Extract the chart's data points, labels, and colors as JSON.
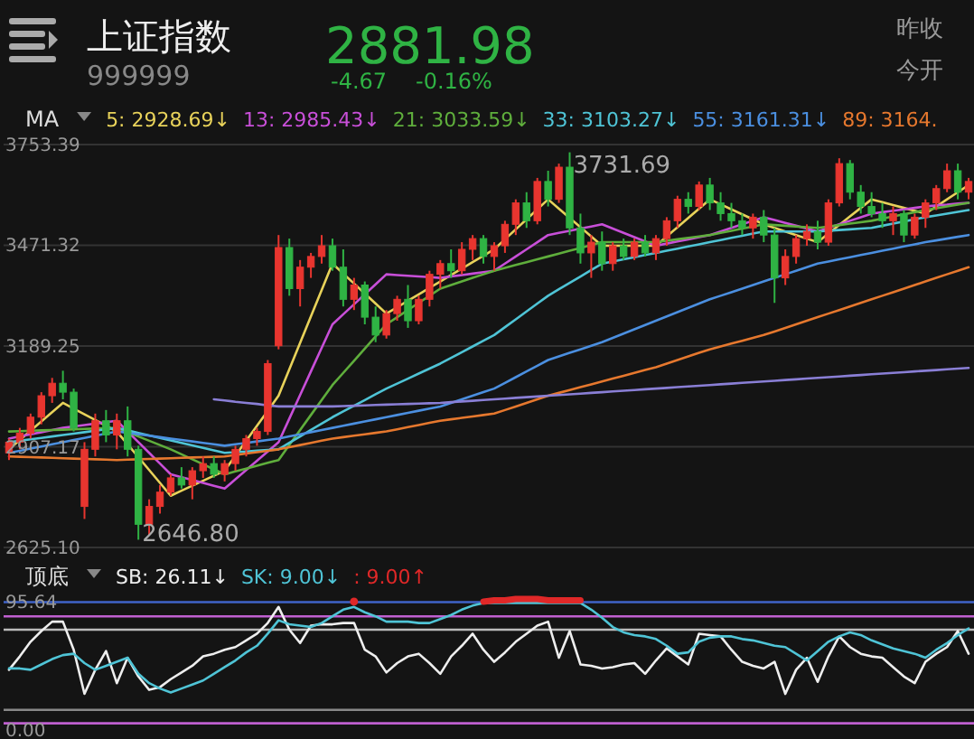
{
  "chart_data": [
    {
      "type": "candlestick",
      "title": "上证指数",
      "subtitle": "999999",
      "legend_title": "MA",
      "legend": "top",
      "grid": "y",
      "annotations": [
        "2881.98",
        "-4.67",
        "-0.16%",
        "昨收",
        "今开",
        "3731.69",
        "2646.80"
      ],
      "categories": [
        null,
        null,
        null,
        null,
        null,
        null,
        null,
        null,
        null,
        null,
        null,
        null,
        null,
        null,
        null,
        null,
        null,
        null,
        null,
        null,
        null,
        null,
        null,
        null,
        null,
        null,
        null,
        null,
        null,
        null,
        null,
        null,
        null,
        null,
        null,
        null,
        null,
        null,
        null,
        null,
        null,
        null,
        null,
        null,
        null,
        null,
        null,
        null,
        null,
        null,
        null,
        null,
        null,
        null,
        null,
        null,
        null,
        null,
        null,
        null,
        null,
        null,
        null,
        null,
        null,
        null,
        null,
        null,
        null,
        null,
        null,
        null,
        null,
        null,
        null,
        null,
        null,
        null,
        null,
        null,
        null,
        null,
        null,
        null,
        null,
        null,
        null,
        null,
        null,
        null
      ],
      "ohlc": [
        [
          2890,
          2930,
          2870,
          2920
        ],
        [
          2920,
          2960,
          2900,
          2945
        ],
        [
          2945,
          3000,
          2930,
          2990
        ],
        [
          2990,
          3060,
          2970,
          3050
        ],
        [
          3050,
          3100,
          3030,
          3085
        ],
        [
          3085,
          3120,
          3040,
          3060
        ],
        [
          3060,
          3070,
          2950,
          2960
        ],
        [
          2740,
          2920,
          2705,
          2900
        ],
        [
          2900,
          3000,
          2880,
          2980
        ],
        [
          2980,
          3010,
          2920,
          2940
        ],
        [
          2940,
          3000,
          2900,
          2980
        ],
        [
          2980,
          3020,
          2880,
          2900
        ],
        [
          2900,
          2910,
          2646.8,
          2690
        ],
        [
          2690,
          2760,
          2660,
          2740
        ],
        [
          2740,
          2800,
          2720,
          2780
        ],
        [
          2780,
          2830,
          2770,
          2820
        ],
        [
          2820,
          2850,
          2790,
          2800
        ],
        [
          2800,
          2850,
          2760,
          2840
        ],
        [
          2840,
          2880,
          2820,
          2860
        ],
        [
          2860,
          2880,
          2820,
          2830
        ],
        [
          2830,
          2870,
          2810,
          2860
        ],
        [
          2860,
          2910,
          2840,
          2900
        ],
        [
          2900,
          2940,
          2880,
          2930
        ],
        [
          2930,
          2960,
          2910,
          2950
        ],
        [
          2950,
          3150,
          2940,
          3140
        ],
        [
          3190,
          3500,
          3180,
          3465
        ],
        [
          3465,
          3490,
          3330,
          3350
        ],
        [
          3350,
          3430,
          3300,
          3410
        ],
        [
          3410,
          3450,
          3380,
          3440
        ],
        [
          3440,
          3500,
          3420,
          3470
        ],
        [
          3470,
          3490,
          3400,
          3410
        ],
        [
          3410,
          3460,
          3300,
          3320
        ],
        [
          3320,
          3380,
          3290,
          3360
        ],
        [
          3360,
          3370,
          3250,
          3270
        ],
        [
          3270,
          3300,
          3200,
          3220
        ],
        [
          3220,
          3290,
          3210,
          3280
        ],
        [
          3280,
          3330,
          3260,
          3320
        ],
        [
          3320,
          3360,
          3240,
          3260
        ],
        [
          3260,
          3330,
          3250,
          3320
        ],
        [
          3320,
          3400,
          3300,
          3390
        ],
        [
          3390,
          3430,
          3350,
          3420
        ],
        [
          3420,
          3460,
          3380,
          3400
        ],
        [
          3400,
          3480,
          3390,
          3460
        ],
        [
          3460,
          3500,
          3430,
          3490
        ],
        [
          3490,
          3500,
          3420,
          3440
        ],
        [
          3440,
          3480,
          3400,
          3470
        ],
        [
          3470,
          3540,
          3450,
          3530
        ],
        [
          3530,
          3600,
          3500,
          3590
        ],
        [
          3590,
          3620,
          3520,
          3540
        ],
        [
          3540,
          3660,
          3530,
          3650
        ],
        [
          3650,
          3680,
          3580,
          3600
        ],
        [
          3600,
          3700,
          3590,
          3690
        ],
        [
          3690,
          3731.69,
          3500,
          3520
        ],
        [
          3520,
          3560,
          3420,
          3450
        ],
        [
          3450,
          3500,
          3380,
          3480
        ],
        [
          3480,
          3510,
          3400,
          3420
        ],
        [
          3420,
          3480,
          3400,
          3470
        ],
        [
          3470,
          3490,
          3430,
          3440
        ],
        [
          3440,
          3490,
          3430,
          3480
        ],
        [
          3480,
          3500,
          3440,
          3450
        ],
        [
          3450,
          3500,
          3430,
          3490
        ],
        [
          3490,
          3550,
          3470,
          3540
        ],
        [
          3540,
          3610,
          3520,
          3600
        ],
        [
          3600,
          3620,
          3560,
          3580
        ],
        [
          3580,
          3650,
          3570,
          3640
        ],
        [
          3640,
          3660,
          3570,
          3590
        ],
        [
          3590,
          3620,
          3540,
          3560
        ],
        [
          3560,
          3590,
          3520,
          3540
        ],
        [
          3540,
          3560,
          3500,
          3520
        ],
        [
          3520,
          3560,
          3490,
          3550
        ],
        [
          3550,
          3570,
          3480,
          3500
        ],
        [
          3500,
          3520,
          3310,
          3380
        ],
        [
          3380,
          3460,
          3360,
          3440
        ],
        [
          3440,
          3500,
          3420,
          3490
        ],
        [
          3490,
          3530,
          3470,
          3510
        ],
        [
          3510,
          3540,
          3460,
          3480
        ],
        [
          3480,
          3600,
          3470,
          3590
        ],
        [
          3590,
          3715,
          3580,
          3700
        ],
        [
          3700,
          3710,
          3600,
          3620
        ],
        [
          3620,
          3640,
          3560,
          3580
        ],
        [
          3580,
          3620,
          3550,
          3560
        ],
        [
          3560,
          3590,
          3520,
          3540
        ],
        [
          3540,
          3580,
          3500,
          3560
        ],
        [
          3560,
          3570,
          3480,
          3500
        ],
        [
          3500,
          3560,
          3490,
          3550
        ],
        [
          3550,
          3600,
          3520,
          3590
        ],
        [
          3590,
          3640,
          3570,
          3630
        ],
        [
          3630,
          3700,
          3620,
          3680
        ],
        [
          3680,
          3700,
          3600,
          3620
        ],
        [
          3620,
          3660,
          3600,
          3650
        ]
      ],
      "series": [
        {
          "name": "5: 2928.69↓",
          "type": "line",
          "color": "#e8d25a",
          "values": [
            2900,
            2926,
            2952,
            2978,
            3004,
            3030,
            3014,
            2998,
            2982,
            2966,
            2950,
            2914,
            2878,
            2842,
            2806,
            2770,
            2784,
            2798,
            2812,
            2826,
            2840,
            2882,
            2924,
            2966,
            3008,
            3050,
            3124,
            3198,
            3272,
            3346,
            3420,
            3392,
            3364,
            3336,
            3308,
            3280,
            3298,
            3316,
            3334,
            3352,
            3370,
            3388,
            3406,
            3424,
            3442,
            3460,
            3488,
            3516,
            3544,
            3572,
            3600,
            3574,
            3548,
            3522,
            3496,
            3470,
            3470,
            3470,
            3470,
            3470,
            3470,
            3496,
            3522,
            3548,
            3574,
            3600,
            3586,
            3572,
            3558,
            3544,
            3530,
            3520,
            3510,
            3500,
            3490,
            3480,
            3504,
            3528,
            3552,
            3576,
            3600,
            3592,
            3584,
            3576,
            3568,
            3560,
            3580,
            3600,
            3620,
            3640
          ]
        },
        {
          "name": "13: 2985.43↓",
          "type": "line",
          "color": "#c84fd8",
          "values": [
            2930,
            2936,
            2942,
            2948,
            2954,
            2960,
            2964,
            2968,
            2972,
            2976,
            2980,
            2950,
            2920,
            2890,
            2860,
            2830,
            2822,
            2814,
            2806,
            2798,
            2790,
            2816,
            2842,
            2868,
            2894,
            2920,
            2986,
            3052,
            3118,
            3184,
            3250,
            3278,
            3306,
            3334,
            3362,
            3390,
            3388,
            3386,
            3384,
            3382,
            3380,
            3384,
            3388,
            3392,
            3396,
            3400,
            3420,
            3440,
            3460,
            3480,
            3500,
            3506,
            3512,
            3518,
            3524,
            3530,
            3518,
            3506,
            3494,
            3482,
            3470,
            3476,
            3482,
            3488,
            3494,
            3500,
            3510,
            3520,
            3530,
            3540,
            3550,
            3542,
            3534,
            3526,
            3518,
            3510,
            3520,
            3530,
            3540,
            3550,
            3560,
            3564,
            3568,
            3572,
            3576,
            3580,
            3583,
            3585,
            3588,
            3590
          ]
        },
        {
          "name": "21: 3033.59↓",
          "type": "line",
          "color": "#5fae3c",
          "values": [
            2950,
            2951,
            2952,
            2953,
            2954,
            2955,
            2956,
            2957,
            2958,
            2959,
            2960,
            2948,
            2936,
            2924,
            2912,
            2900,
            2886,
            2872,
            2858,
            2844,
            2830,
            2838,
            2846,
            2854,
            2862,
            2870,
            2912,
            2954,
            2996,
            3038,
            3080,
            3114,
            3148,
            3182,
            3216,
            3250,
            3270,
            3290,
            3310,
            3330,
            3350,
            3360,
            3370,
            3380,
            3390,
            3400,
            3408,
            3416,
            3424,
            3432,
            3440,
            3448,
            3456,
            3464,
            3472,
            3480,
            3480,
            3480,
            3480,
            3480,
            3480,
            3484,
            3488,
            3492,
            3496,
            3500,
            3506,
            3512,
            3518,
            3524,
            3530,
            3528,
            3526,
            3524,
            3522,
            3520,
            3524,
            3528,
            3532,
            3536,
            3540,
            3546,
            3552,
            3558,
            3564,
            3570,
            3575,
            3580,
            3585,
            3590
          ]
        },
        {
          "name": "33: 3103.27↓",
          "type": "line",
          "color": "#4fc4d6",
          "values": [
            2920,
            2924,
            2928,
            2932,
            2936,
            2940,
            2944,
            2948,
            2952,
            2956,
            2960,
            2953,
            2946,
            2939,
            2932,
            2925,
            2918,
            2911,
            2904,
            2897,
            2890,
            2892,
            2894,
            2896,
            2898,
            2900,
            2918,
            2936,
            2954,
            2972,
            2990,
            3006,
            3022,
            3038,
            3054,
            3070,
            3084,
            3098,
            3112,
            3126,
            3140,
            3156,
            3172,
            3188,
            3204,
            3220,
            3242,
            3264,
            3286,
            3308,
            3330,
            3348,
            3366,
            3384,
            3402,
            3420,
            3426,
            3432,
            3438,
            3444,
            3450,
            3456,
            3462,
            3468,
            3474,
            3480,
            3486,
            3492,
            3498,
            3504,
            3510,
            3510,
            3510,
            3510,
            3510,
            3510,
            3512,
            3514,
            3516,
            3518,
            3520,
            3526,
            3532,
            3538,
            3544,
            3550,
            3555,
            3560,
            3565,
            3570
          ]
        },
        {
          "name": "55: 3161.31↓",
          "type": "line",
          "color": "#4b8fe0",
          "values": [
            2890,
            2896,
            2902,
            2908,
            2914,
            2920,
            2926,
            2932,
            2938,
            2944,
            2950,
            2946,
            2942,
            2938,
            2934,
            2930,
            2926,
            2922,
            2918,
            2914,
            2910,
            2914,
            2918,
            2922,
            2926,
            2930,
            2936,
            2942,
            2948,
            2954,
            2960,
            2966,
            2972,
            2978,
            2984,
            2990,
            2996,
            3002,
            3008,
            3014,
            3020,
            3030,
            3040,
            3050,
            3060,
            3070,
            3086,
            3102,
            3118,
            3134,
            3150,
            3160,
            3170,
            3180,
            3190,
            3200,
            3212,
            3224,
            3236,
            3248,
            3260,
            3272,
            3284,
            3296,
            3308,
            3320,
            3330,
            3340,
            3350,
            3360,
            3370,
            3380,
            3390,
            3400,
            3410,
            3420,
            3426,
            3432,
            3438,
            3444,
            3450,
            3456,
            3462,
            3468,
            3474,
            3480,
            3485,
            3490,
            3495,
            3500
          ]
        },
        {
          "name": "89: 3164.",
          "type": "line",
          "color": "#e6782e",
          "values": [
            2880,
            2879,
            2878,
            2877,
            2876,
            2875,
            2874,
            2873,
            2872,
            2871,
            2870,
            2871,
            2872,
            2873,
            2874,
            2875,
            2876,
            2877,
            2878,
            2879,
            2880,
            2884,
            2888,
            2892,
            2896,
            2900,
            2906,
            2912,
            2918,
            2924,
            2930,
            2934,
            2938,
            2942,
            2946,
            2950,
            2956,
            2962,
            2968,
            2974,
            2980,
            2984,
            2988,
            2992,
            2996,
            3000,
            3010,
            3020,
            3030,
            3040,
            3050,
            3058,
            3066,
            3074,
            3082,
            3090,
            3098,
            3106,
            3114,
            3122,
            3130,
            3140,
            3150,
            3160,
            3170,
            3180,
            3188,
            3196,
            3204,
            3212,
            3220,
            3230,
            3240,
            3250,
            3260,
            3270,
            3280,
            3290,
            3300,
            3310,
            3320,
            3330,
            3340,
            3350,
            3360,
            3370,
            3380,
            3390,
            3400,
            3410
          ]
        },
        {
          "type": "line",
          "color": "#8a7fd6",
          "values": [
            null,
            null,
            null,
            null,
            null,
            null,
            null,
            null,
            null,
            null,
            null,
            null,
            null,
            null,
            null,
            null,
            null,
            null,
            null,
            3040,
            3037,
            3033,
            3030,
            3027,
            3023,
            3020,
            3020,
            3020,
            3020,
            3020,
            3020,
            3021,
            3022,
            3023,
            3024,
            3025,
            3026,
            3027,
            3028,
            3029,
            3030,
            3032,
            3034,
            3036,
            3038,
            3040,
            3042,
            3044,
            3046,
            3048,
            3050,
            3052,
            3054,
            3056,
            3058,
            3060,
            3062,
            3064,
            3066,
            3068,
            3070,
            3072,
            3074,
            3076,
            3078,
            3080,
            3082,
            3084,
            3086,
            3088,
            3090,
            3092,
            3094,
            3096,
            3098,
            3100,
            3102,
            3104,
            3106,
            3108,
            3110,
            3112,
            3114,
            3116,
            3118,
            3120,
            3122,
            3124,
            3126,
            3128
          ]
        }
      ],
      "ylim": [
        2625.1,
        3753.39
      ],
      "yticks": [
        {
          "value": 2625.1,
          "label": "2625.10"
        },
        2907.17,
        3189.25,
        3471.32,
        3753.39
      ]
    },
    {
      "type": "line",
      "legend_title": "顶底",
      "legend": "top",
      "tick_labels": "y",
      "ylim": [
        0,
        100
      ],
      "yticks": [
        {
          "value": 0,
          "label": "0.00"
        },
        95.64
      ],
      "categories": [
        null,
        null,
        null,
        null,
        null,
        null,
        null,
        null,
        null,
        null,
        null,
        null,
        null,
        null,
        null,
        null,
        null,
        null,
        null,
        null,
        null,
        null,
        null,
        null,
        null,
        null,
        null,
        null,
        null,
        null,
        null,
        null,
        null,
        null,
        null,
        null,
        null,
        null,
        null,
        null,
        null,
        null,
        null,
        null,
        null,
        null,
        null,
        null,
        null,
        null,
        null,
        null,
        null,
        null,
        null,
        null,
        null,
        null,
        null,
        null,
        null,
        null,
        null,
        null,
        null,
        null,
        null,
        null,
        null,
        null,
        null,
        null,
        null,
        null,
        null,
        null,
        null,
        null,
        null,
        null,
        null,
        null,
        null,
        null,
        null,
        null,
        null,
        null,
        null,
        null
      ],
      "ref_lines": [
        {
          "axis": "y",
          "value": 95.64,
          "color": "#3f63c8"
        },
        {
          "axis": "y",
          "value": 85,
          "color": "#c060d0"
        },
        {
          "axis": "y",
          "value": 75,
          "color": "#bbbbbb"
        },
        {
          "axis": "y",
          "value": 15,
          "color": "#888888"
        },
        {
          "axis": "y",
          "value": 5,
          "color": "#c060d0"
        }
      ],
      "series": [
        {
          "name": "SB: 26.11↓",
          "color": "#eeeeee",
          "values": [
            45,
            55,
            66,
            74,
            81,
            81,
            60,
            27,
            45,
            59,
            35,
            54,
            40,
            30,
            32,
            38,
            43,
            48,
            55,
            57,
            60,
            62,
            67,
            72,
            80,
            92,
            75,
            65,
            78,
            79,
            79,
            80,
            80,
            60,
            55,
            43,
            50,
            55,
            57,
            50,
            42,
            55,
            63,
            72,
            60,
            51,
            58,
            66,
            72,
            78,
            81,
            54,
            74,
            49,
            48,
            46,
            47,
            49,
            50,
            42,
            52,
            61,
            55,
            49,
            72,
            71,
            70,
            60,
            51,
            48,
            46,
            51,
            27,
            45,
            54,
            36,
            55,
            70,
            62,
            57,
            55,
            54,
            47,
            40,
            35,
            51,
            57,
            62,
            74,
            57
          ]
        },
        {
          "name": "SK: 9.00↓",
          "color": "#4fc4d6",
          "values": [
            46,
            46,
            45,
            49,
            53,
            56,
            57,
            50,
            45,
            48,
            51,
            54,
            42,
            35,
            31,
            28,
            31,
            34,
            37,
            42,
            47,
            52,
            58,
            63,
            72,
            82,
            79,
            78,
            77,
            80,
            85,
            90,
            92,
            88,
            85,
            81,
            81,
            81,
            80,
            80,
            83,
            86,
            90,
            93,
            95,
            95,
            95,
            95,
            95,
            95,
            95,
            95,
            95,
            95,
            90,
            84,
            77,
            73,
            71,
            70,
            68,
            63,
            57,
            58,
            66,
            69,
            70,
            70,
            68,
            67,
            65,
            63,
            62,
            57,
            52,
            59,
            66,
            70,
            73,
            71,
            67,
            64,
            61,
            59,
            57,
            54,
            60,
            65,
            71,
            76
          ]
        },
        {
          "name": ": 9.00↑",
          "color": "#e02828",
          "values": [
            null,
            null,
            null,
            null,
            null,
            null,
            null,
            null,
            null,
            null,
            null,
            null,
            null,
            null,
            null,
            null,
            null,
            null,
            null,
            null,
            null,
            null,
            null,
            null,
            null,
            null,
            null,
            null,
            null,
            null,
            null,
            null,
            96,
            null,
            null,
            null,
            null,
            null,
            null,
            null,
            null,
            null,
            null,
            null,
            96,
            97,
            97,
            98,
            98,
            98,
            97,
            97,
            97,
            97,
            null,
            null,
            null,
            null,
            null,
            null,
            null,
            null,
            null,
            null,
            null,
            null,
            null,
            null,
            null,
            null,
            null,
            null,
            null,
            null,
            null,
            null,
            null,
            null,
            null,
            null,
            null,
            null,
            null,
            null,
            null,
            null,
            null,
            null,
            null,
            null
          ]
        }
      ]
    }
  ]
}
